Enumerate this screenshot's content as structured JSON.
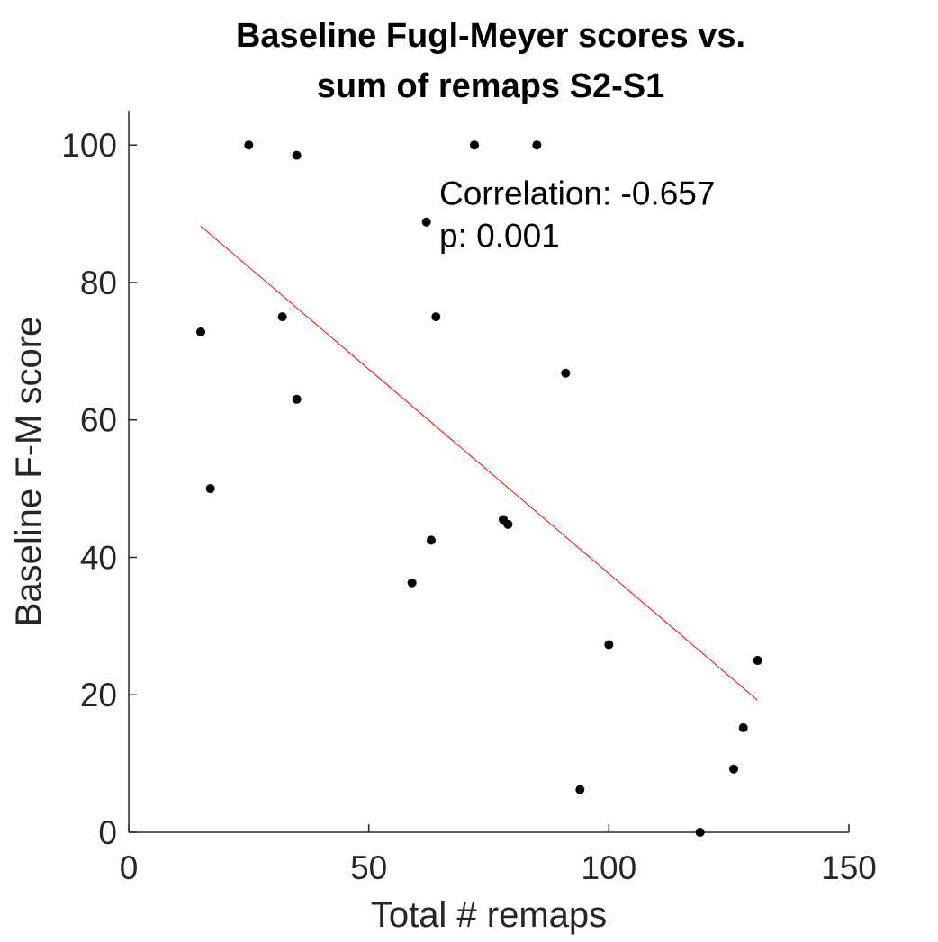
{
  "chart_data": {
    "type": "scatter",
    "title": [
      "Baseline Fugl-Meyer scores vs.",
      "sum of remaps S2-S1"
    ],
    "xlabel": "Total # remaps",
    "ylabel": "Baseline F-M score",
    "xlim": [
      0,
      150
    ],
    "ylim": [
      0,
      105
    ],
    "xticks": [
      0,
      50,
      100,
      150
    ],
    "yticks": [
      0,
      20,
      40,
      60,
      80,
      100
    ],
    "grid": false,
    "points": [
      {
        "x": 25,
        "y": 100
      },
      {
        "x": 35,
        "y": 98.5
      },
      {
        "x": 72,
        "y": 100
      },
      {
        "x": 85,
        "y": 100
      },
      {
        "x": 62,
        "y": 88.8
      },
      {
        "x": 15,
        "y": 72.8
      },
      {
        "x": 32,
        "y": 75
      },
      {
        "x": 64,
        "y": 75
      },
      {
        "x": 91,
        "y": 66.8
      },
      {
        "x": 35,
        "y": 63
      },
      {
        "x": 17,
        "y": 50
      },
      {
        "x": 78,
        "y": 45.5
      },
      {
        "x": 79,
        "y": 44.8
      },
      {
        "x": 63,
        "y": 42.5
      },
      {
        "x": 59,
        "y": 36.3
      },
      {
        "x": 100,
        "y": 27.3
      },
      {
        "x": 131,
        "y": 25
      },
      {
        "x": 128,
        "y": 15.2
      },
      {
        "x": 126,
        "y": 9.2
      },
      {
        "x": 94,
        "y": 6.2
      },
      {
        "x": 119,
        "y": 0
      }
    ],
    "fit_line": {
      "x": [
        15,
        131
      ],
      "y": [
        88.2,
        19.2
      ],
      "color": "#ff0000"
    },
    "point_color": "#000000",
    "annotation": {
      "lines": [
        "Correlation: -0.657",
        "p: 0.001"
      ],
      "anchor": {
        "x": 75,
        "y": 90
      }
    }
  }
}
